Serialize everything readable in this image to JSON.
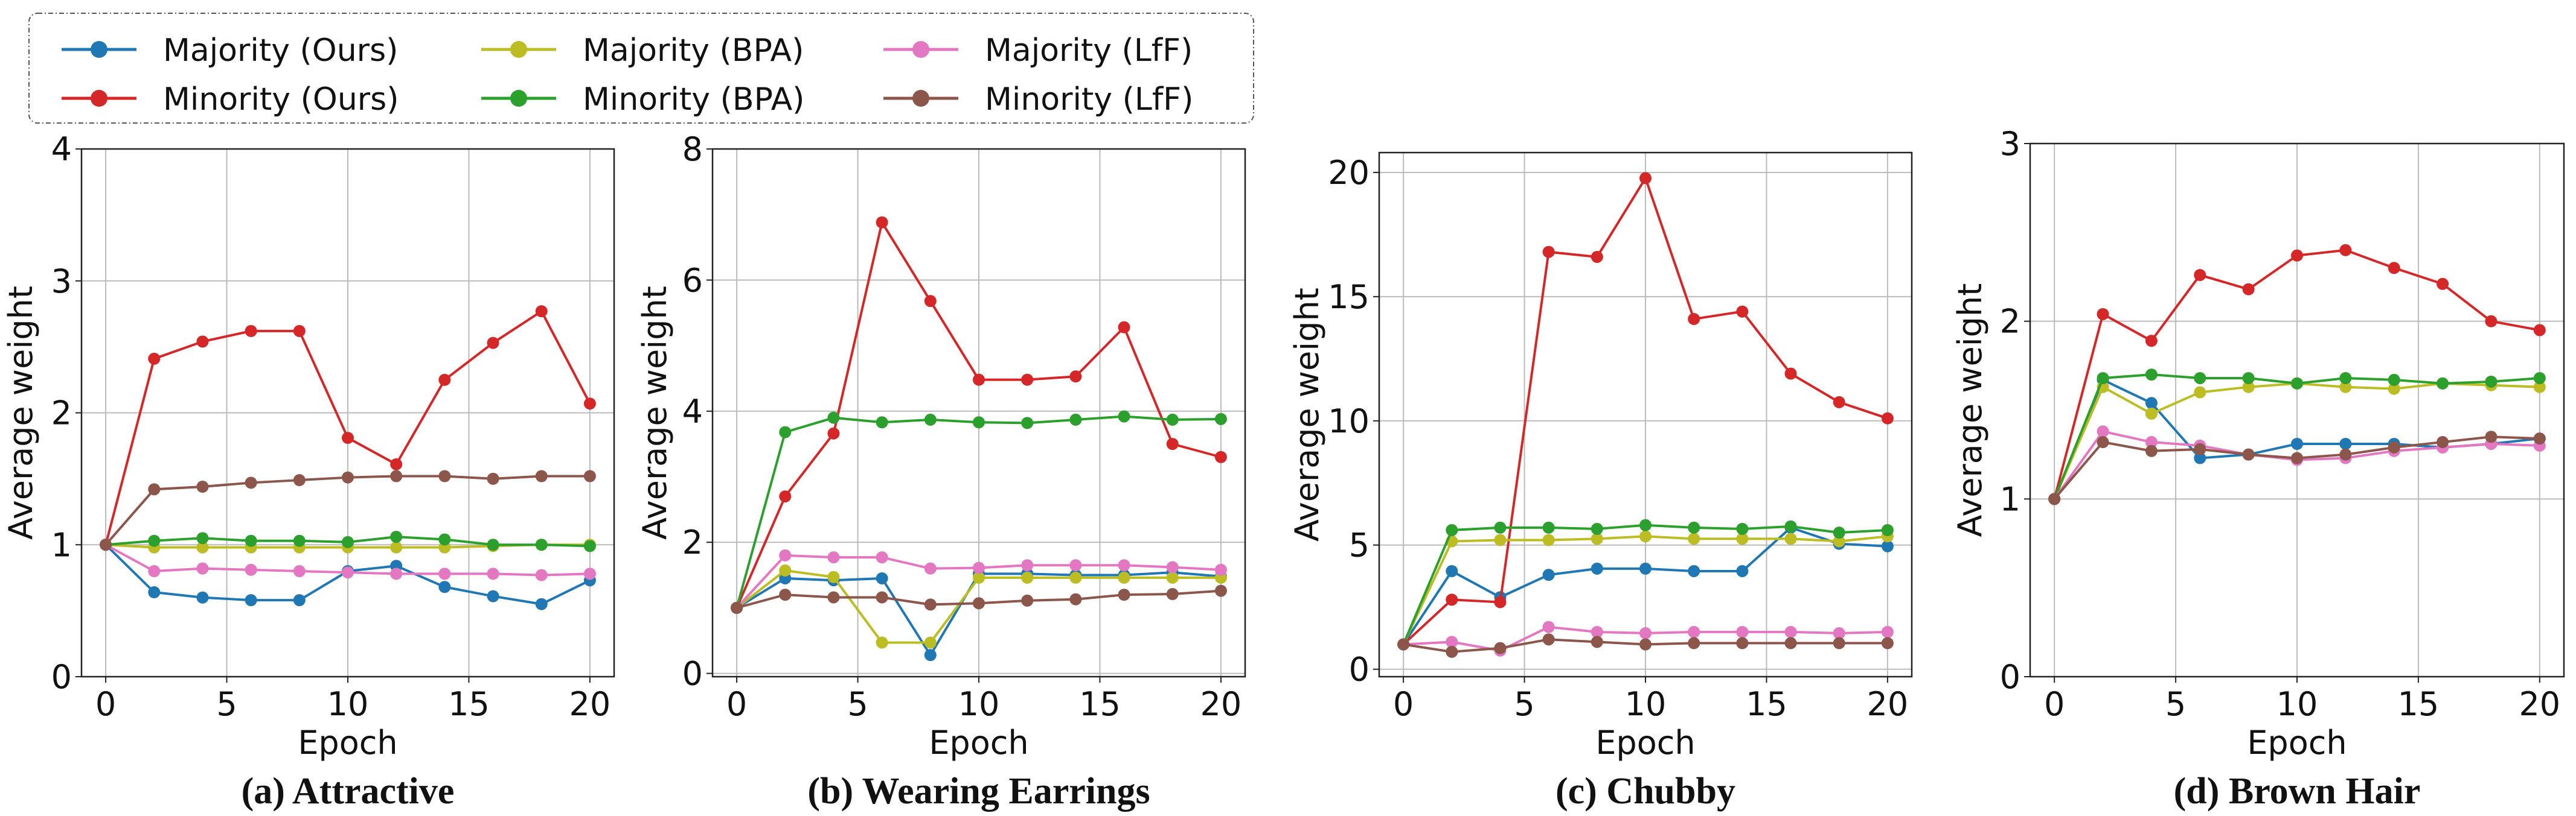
{
  "legend": {
    "placement": "top-left",
    "entries": [
      {
        "label": "Majority (Ours)",
        "color": "#1f77b4"
      },
      {
        "label": "Minority (Ours)",
        "color": "#d62728"
      },
      {
        "label": "Majority (BPA)",
        "color": "#bcbd22"
      },
      {
        "label": "Minority (BPA)",
        "color": "#2ca02c"
      },
      {
        "label": "Majority (LfF)",
        "color": "#e377c2"
      },
      {
        "label": "Minority (LfF)",
        "color": "#8c564b"
      }
    ]
  },
  "chart_data": [
    {
      "type": "line",
      "title": "(a) Attractive",
      "xlabel": "Epoch",
      "ylabel": "Average weight",
      "xlim": [
        -1,
        21
      ],
      "ylim": [
        0,
        4
      ],
      "xticks": [
        0,
        5,
        10,
        15,
        20
      ],
      "yticks": [
        0,
        1,
        2,
        3,
        4
      ],
      "grid": true,
      "x": [
        0,
        2,
        4,
        6,
        8,
        10,
        12,
        14,
        16,
        18,
        20
      ],
      "series": [
        {
          "name": "Majority (Ours)",
          "values": [
            1,
            0.64,
            0.6,
            0.58,
            0.58,
            0.8,
            0.84,
            0.68,
            0.61,
            0.55,
            0.73
          ]
        },
        {
          "name": "Minority (Ours)",
          "values": [
            1,
            2.41,
            2.54,
            2.62,
            2.62,
            1.81,
            1.61,
            2.25,
            2.53,
            2.77,
            2.07
          ]
        },
        {
          "name": "Majority (BPA)",
          "values": [
            1,
            0.98,
            0.98,
            0.98,
            0.98,
            0.98,
            0.98,
            0.98,
            0.99,
            1.0,
            1.0
          ]
        },
        {
          "name": "Minority (BPA)",
          "values": [
            1,
            1.03,
            1.05,
            1.03,
            1.03,
            1.02,
            1.06,
            1.04,
            1.0,
            1.0,
            0.99
          ]
        },
        {
          "name": "Majority (LfF)",
          "values": [
            1,
            0.8,
            0.82,
            0.81,
            0.8,
            0.79,
            0.78,
            0.78,
            0.78,
            0.77,
            0.78
          ]
        },
        {
          "name": "Minority (LfF)",
          "values": [
            1,
            1.42,
            1.44,
            1.47,
            1.49,
            1.51,
            1.52,
            1.52,
            1.5,
            1.52,
            1.52
          ]
        }
      ]
    },
    {
      "type": "line",
      "title": "(b) Wearing Earrings",
      "xlabel": "Epoch",
      "ylabel": "Average weight",
      "xlim": [
        -1,
        21
      ],
      "ylim": [
        -0.05,
        8
      ],
      "xticks": [
        0,
        5,
        10,
        15,
        20
      ],
      "yticks": [
        0,
        2,
        4,
        6,
        8
      ],
      "grid": true,
      "x": [
        0,
        2,
        4,
        6,
        8,
        10,
        12,
        14,
        16,
        18,
        20
      ],
      "series": [
        {
          "name": "Majority (Ours)",
          "values": [
            1,
            1.45,
            1.42,
            1.45,
            0.28,
            1.52,
            1.52,
            1.5,
            1.5,
            1.54,
            1.48
          ]
        },
        {
          "name": "Minority (Ours)",
          "values": [
            1,
            2.7,
            3.66,
            6.88,
            5.68,
            4.48,
            4.48,
            4.53,
            5.28,
            3.5,
            3.3
          ]
        },
        {
          "name": "Majority (BPA)",
          "values": [
            1,
            1.57,
            1.47,
            0.47,
            0.47,
            1.46,
            1.46,
            1.46,
            1.46,
            1.46,
            1.46
          ]
        },
        {
          "name": "Minority (BPA)",
          "values": [
            1,
            3.68,
            3.9,
            3.83,
            3.87,
            3.83,
            3.82,
            3.87,
            3.92,
            3.87,
            3.88
          ]
        },
        {
          "name": "Majority (LfF)",
          "values": [
            1,
            1.8,
            1.77,
            1.77,
            1.6,
            1.61,
            1.65,
            1.65,
            1.65,
            1.62,
            1.58
          ]
        },
        {
          "name": "Minority (LfF)",
          "values": [
            1,
            1.2,
            1.16,
            1.16,
            1.05,
            1.07,
            1.11,
            1.13,
            1.2,
            1.21,
            1.26
          ]
        }
      ]
    },
    {
      "type": "line",
      "title": "(c) Chubby",
      "xlabel": "Epoch",
      "ylabel": "Average weight",
      "xlim": [
        -1,
        21
      ],
      "ylim": [
        -0.3,
        20.8
      ],
      "xticks": [
        0,
        5,
        10,
        15,
        20
      ],
      "yticks": [
        0,
        5,
        10,
        15,
        20
      ],
      "grid": true,
      "x": [
        0,
        2,
        4,
        6,
        8,
        10,
        12,
        14,
        16,
        18,
        20
      ],
      "series": [
        {
          "name": "Majority (Ours)",
          "values": [
            1,
            3.95,
            2.9,
            3.8,
            4.05,
            4.05,
            3.95,
            3.95,
            5.7,
            5.05,
            4.95
          ]
        },
        {
          "name": "Minority (Ours)",
          "values": [
            1,
            2.8,
            2.7,
            16.8,
            16.6,
            19.77,
            14.1,
            14.4,
            11.9,
            10.75,
            10.1
          ]
        },
        {
          "name": "Majority (BPA)",
          "values": [
            1,
            5.15,
            5.2,
            5.2,
            5.25,
            5.35,
            5.25,
            5.25,
            5.25,
            5.15,
            5.35
          ]
        },
        {
          "name": "Minority (BPA)",
          "values": [
            1,
            5.6,
            5.7,
            5.7,
            5.65,
            5.8,
            5.7,
            5.65,
            5.75,
            5.5,
            5.6
          ]
        },
        {
          "name": "Majority (LfF)",
          "values": [
            1,
            1.1,
            0.75,
            1.7,
            1.5,
            1.45,
            1.5,
            1.5,
            1.5,
            1.45,
            1.5
          ]
        },
        {
          "name": "Minority (LfF)",
          "values": [
            1,
            0.7,
            0.85,
            1.2,
            1.1,
            1.0,
            1.05,
            1.05,
            1.05,
            1.05,
            1.05
          ]
        }
      ]
    },
    {
      "type": "line",
      "title": "(d) Brown Hair",
      "xlabel": "Epoch",
      "ylabel": "Average weight",
      "xlim": [
        -1,
        21
      ],
      "ylim": [
        0,
        3
      ],
      "xticks": [
        0,
        5,
        10,
        15,
        20
      ],
      "yticks": [
        0,
        1,
        2,
        3
      ],
      "grid": true,
      "x": [
        0,
        2,
        4,
        6,
        8,
        10,
        12,
        14,
        16,
        18,
        20
      ],
      "series": [
        {
          "name": "Majority (Ours)",
          "values": [
            1,
            1.67,
            1.54,
            1.23,
            1.25,
            1.31,
            1.31,
            1.31,
            1.29,
            1.31,
            1.34
          ]
        },
        {
          "name": "Minority (Ours)",
          "values": [
            1,
            2.04,
            1.89,
            2.26,
            2.18,
            2.37,
            2.4,
            2.3,
            2.21,
            2.0,
            1.95
          ]
        },
        {
          "name": "Majority (BPA)",
          "values": [
            1,
            1.63,
            1.48,
            1.6,
            1.63,
            1.65,
            1.63,
            1.62,
            1.65,
            1.64,
            1.63
          ]
        },
        {
          "name": "Minority (BPA)",
          "values": [
            1,
            1.68,
            1.7,
            1.68,
            1.68,
            1.65,
            1.68,
            1.67,
            1.65,
            1.66,
            1.68
          ]
        },
        {
          "name": "Majority (LfF)",
          "values": [
            1,
            1.38,
            1.32,
            1.3,
            1.25,
            1.22,
            1.23,
            1.27,
            1.29,
            1.31,
            1.3
          ]
        },
        {
          "name": "Minority (LfF)",
          "values": [
            1,
            1.32,
            1.27,
            1.28,
            1.25,
            1.23,
            1.25,
            1.29,
            1.32,
            1.35,
            1.34
          ]
        }
      ]
    }
  ]
}
